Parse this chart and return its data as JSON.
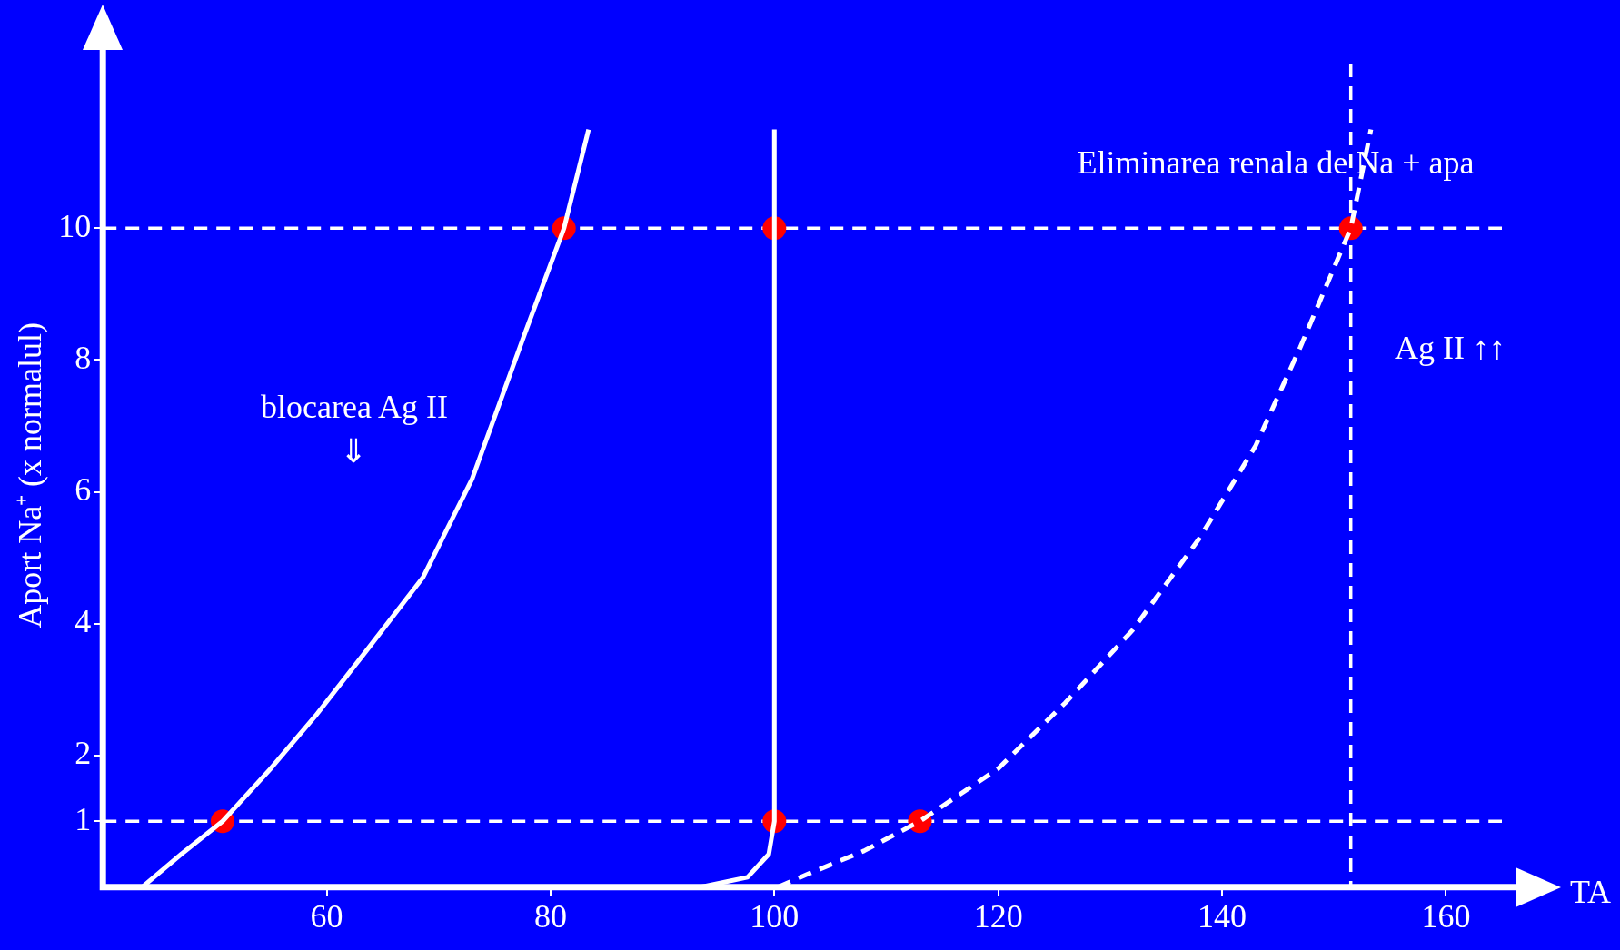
{
  "chart_data": {
    "type": "line",
    "xlabel": "TA",
    "ylabel": "Aport Na⁺ (x normalul)",
    "xlim": [
      40,
      165
    ],
    "xticks": [
      60,
      80,
      100,
      120,
      140,
      160
    ],
    "ylim": [
      0,
      12.5
    ],
    "yticks": [
      1,
      2,
      4,
      6,
      8,
      10
    ],
    "grid": false,
    "legend": false,
    "series": [
      {
        "color": "#ffffff",
        "line_style": "solid",
        "marker": "none",
        "x": [
          43.5,
          47,
          50.7,
          55,
          59,
          63.6,
          68.6,
          73,
          77.7,
          81.2,
          83.4
        ],
        "values": [
          0,
          0.5,
          1,
          1.8,
          2.6,
          3.6,
          4.7,
          6.2,
          8.4,
          10,
          11.5
        ]
      },
      {
        "color": "#ffffff",
        "line_style": "solid",
        "marker": "none",
        "x": [
          93.4,
          97.6,
          99.5,
          100,
          100
        ],
        "values": [
          0,
          0.15,
          0.5,
          1,
          11.5
        ]
      },
      {
        "color": "#ffffff",
        "line_style": "dashed",
        "marker": "none",
        "x": [
          100.3,
          103,
          108,
          113,
          120,
          126,
          132,
          138,
          143,
          147,
          151.5,
          153.3
        ],
        "values": [
          0,
          0.2,
          0.55,
          1,
          1.8,
          2.8,
          3.9,
          5.3,
          6.7,
          8.2,
          10,
          11.5
        ]
      },
      {
        "type": "scatter",
        "color": "#ff0000",
        "marker": "circle",
        "x": [
          50.7,
          81.2,
          100,
          100,
          113,
          151.5
        ],
        "values": [
          1,
          10,
          10,
          1,
          1,
          10
        ]
      }
    ],
    "ref_lines": [
      {
        "axis": "y",
        "value": 1,
        "color": "#ffffff",
        "line_style": "dashed"
      },
      {
        "axis": "y",
        "value": 10,
        "color": "#ffffff",
        "line_style": "dashed"
      },
      {
        "axis": "x",
        "value": 151.5,
        "color": "#ffffff",
        "line_style": "dashed"
      }
    ],
    "annotations": [
      "Eliminarea renala de Na + apa",
      "Ag II ↑↑",
      "blocarea Ag II",
      "⇓"
    ]
  }
}
